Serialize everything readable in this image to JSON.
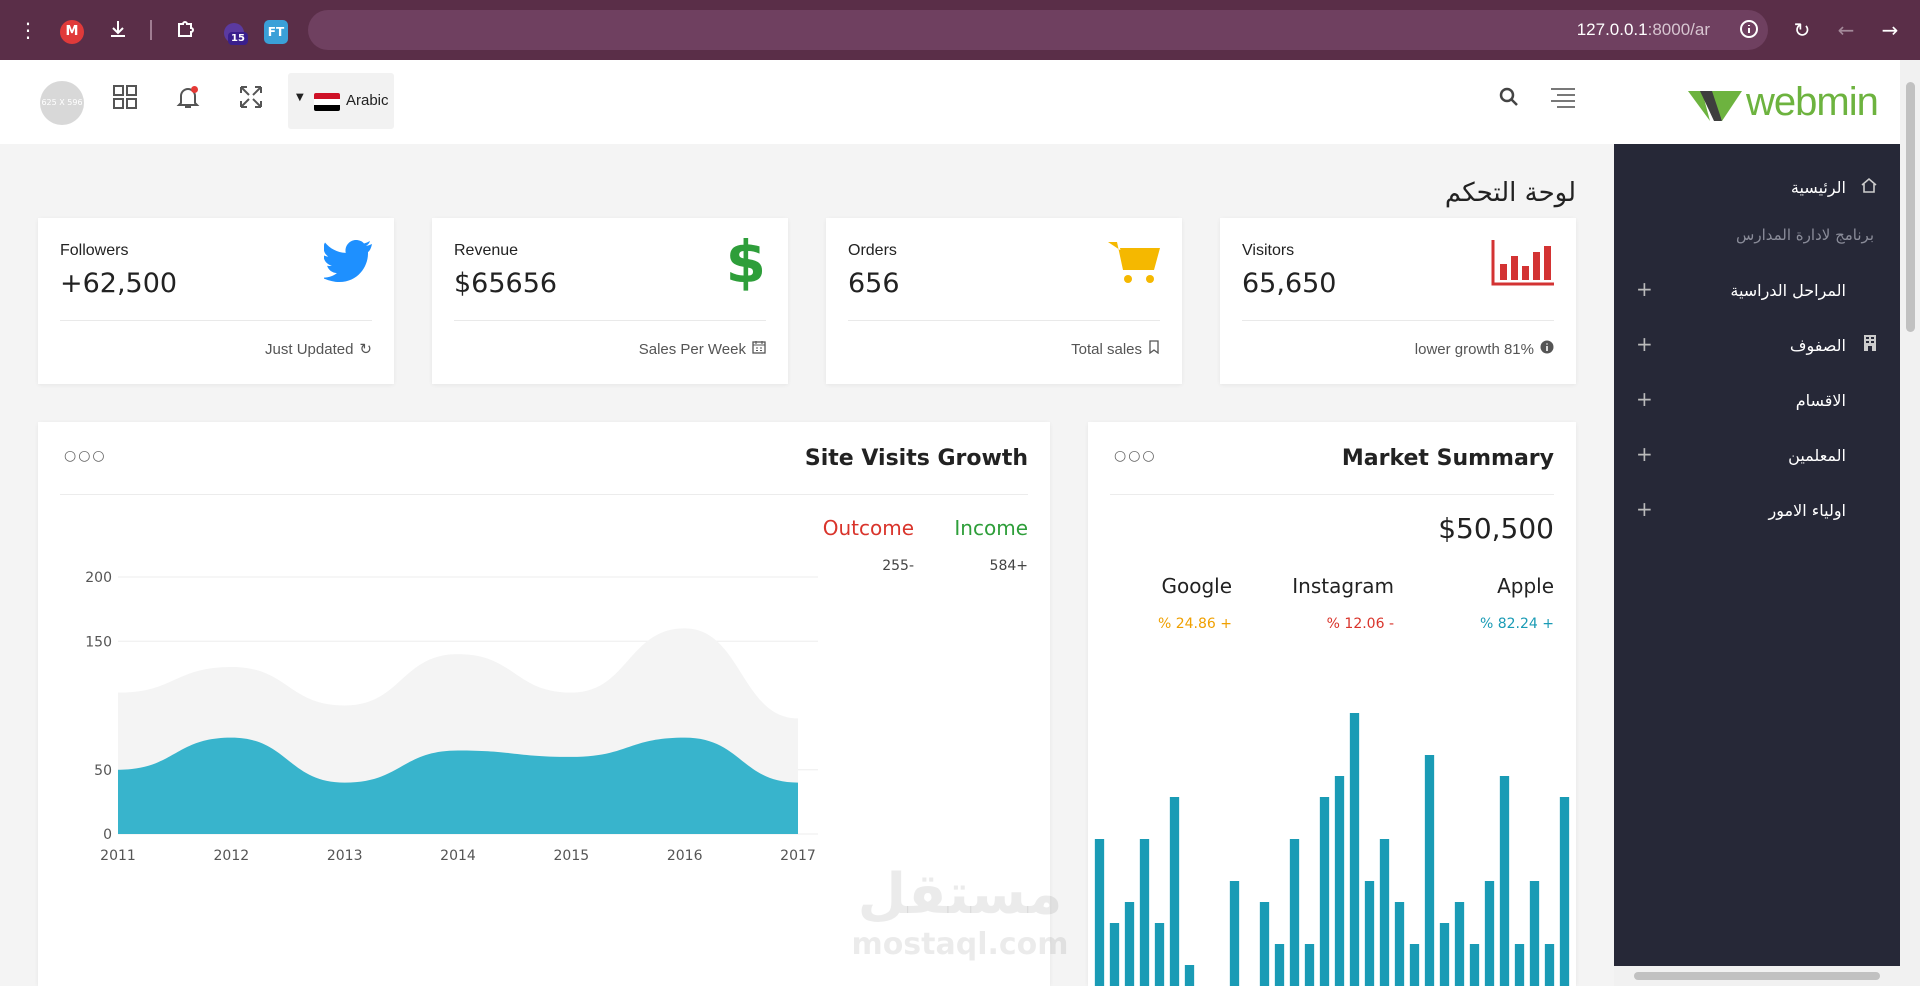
{
  "browser": {
    "ext_m": "M",
    "ext_badge": "15",
    "ext_ft": "FT",
    "url_host": "127.0.0.1",
    "url_rest": ":8000/ar"
  },
  "header": {
    "avatar_text": "625 X 596",
    "language": "Arabic",
    "logo_text": "webmin"
  },
  "sidebar": {
    "items": [
      {
        "label": "الرئيسية",
        "icon": "home-icon",
        "expandable": false
      },
      {
        "label": "المراحل الدراسية",
        "icon": "",
        "expandable": true
      },
      {
        "label": "الصفوف",
        "icon": "building-icon",
        "expandable": true
      },
      {
        "label": "الاقسام",
        "icon": "",
        "expandable": true
      },
      {
        "label": "المعلمين",
        "icon": "",
        "expandable": true
      },
      {
        "label": "اولياء الامور",
        "icon": "",
        "expandable": true
      }
    ],
    "subtitle": "برنامج لادارة المدارس"
  },
  "page": {
    "title": "لوحة التحكم"
  },
  "stats": [
    {
      "label": "Followers",
      "value": "+62,500",
      "footer": "Just Updated",
      "icon": "twitter-icon",
      "footer_icon": "refresh-icon",
      "color": "#1e90ff"
    },
    {
      "label": "Revenue",
      "value": "$65656",
      "footer": "Sales Per Week",
      "icon": "dollar-icon",
      "footer_icon": "calendar-icon",
      "color": "#2e9e3a"
    },
    {
      "label": "Orders",
      "value": "656",
      "footer": "Total sales",
      "icon": "cart-icon",
      "footer_icon": "bookmark-icon",
      "color": "#f5b800"
    },
    {
      "label": "Visitors",
      "value": "65,650",
      "footer": "lower growth 81%",
      "icon": "bar-chart-icon",
      "footer_icon": "info-icon",
      "color": "#d33333"
    }
  ],
  "site_visits": {
    "title": "Site Visits Growth",
    "legend": [
      {
        "label": "Outcome",
        "value": "255-",
        "color": "#d9342b"
      },
      {
        "label": "Income",
        "value": "584+",
        "color": "#2e9e3a"
      }
    ]
  },
  "market": {
    "title": "Market Summary",
    "total": "$50,500",
    "companies": [
      {
        "name": "Google",
        "change": "% 24.86 +",
        "color": "#f0a000"
      },
      {
        "name": "Instagram",
        "change": "% 12.06 -",
        "color": "#d9342b"
      },
      {
        "name": "Apple",
        "change": "% 82.24 +",
        "color": "#1a9bb5"
      }
    ]
  },
  "chart_data": [
    {
      "type": "area",
      "x": [
        "2011",
        "2012",
        "2013",
        "2014",
        "2015",
        "2016",
        "2017"
      ],
      "ylim": [
        0,
        200
      ],
      "yticks": [
        0,
        50,
        150,
        200
      ],
      "series": [
        {
          "values": [
            110,
            130,
            100,
            140,
            110,
            160,
            90
          ],
          "color": "#f4f4f4"
        },
        {
          "values": [
            50,
            75,
            40,
            65,
            60,
            75,
            40
          ],
          "color": "#38b4cc"
        }
      ]
    },
    {
      "type": "bar",
      "values": [
        7,
        3,
        4,
        7,
        3,
        9,
        1,
        0,
        0,
        5,
        0,
        4,
        2,
        7,
        2,
        9,
        10,
        13,
        5,
        7,
        4,
        2,
        11,
        3,
        4,
        2,
        5,
        10,
        2,
        5,
        2,
        9
      ],
      "ylim": [
        0,
        14
      ],
      "color": "#1a9bb5"
    }
  ]
}
